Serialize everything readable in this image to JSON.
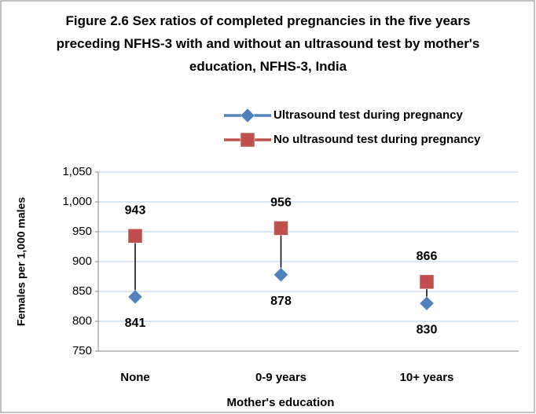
{
  "chart_data": {
    "type": "line",
    "title": "Figure 2.6 Sex ratios of completed pregnancies in the five years preceding NFHS-3 with and without an ultrasound test by mother's education, NFHS-3, India",
    "categories": [
      "None",
      "0-9 years",
      "10+ years"
    ],
    "series": [
      {
        "name": "Ultrasound test during pregnancy",
        "color": "#4f81bd",
        "marker": "diamond",
        "values": [
          841,
          878,
          830
        ]
      },
      {
        "name": "No ultrasound test during pregnancy",
        "color": "#c0504d",
        "marker": "square",
        "values": [
          943,
          956,
          866
        ]
      }
    ],
    "y_label": "Females per 1,000 males",
    "x_label": "Mother's education",
    "ylim": [
      750,
      1050
    ],
    "yticks": [
      750,
      800,
      850,
      900,
      950,
      {
        "value": 1000,
        "label": "1,000"
      },
      {
        "value": 1050,
        "label": "1,050"
      }
    ],
    "grid": true,
    "high_low_lines": true,
    "legend": "top-right"
  }
}
